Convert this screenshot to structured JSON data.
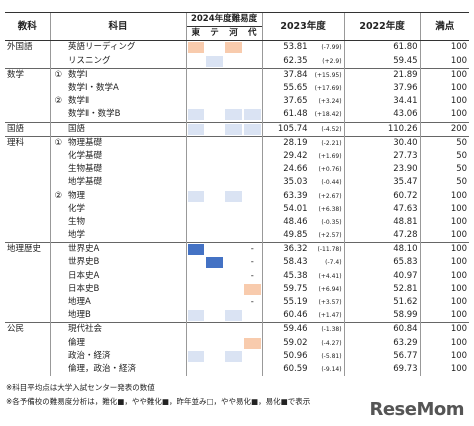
{
  "header": {
    "group": "教科",
    "subject": "科目",
    "difficulty": "2024年度難易度",
    "schools": [
      "東",
      "テ",
      "河",
      "代"
    ],
    "y2023": "2023年度",
    "y2022": "2022年度",
    "full": "満点"
  },
  "rows": [
    {
      "group": "外国語",
      "subject": "英語リーディング",
      "difficulty": [
        "#f8cbad",
        null,
        "#f8cbad",
        null
      ],
      "score": "53.81",
      "change": "(-7.99)",
      "prev": "61.80",
      "full": "100"
    },
    {
      "subject": "リスニング",
      "difficulty": [
        null,
        "#dae3f3",
        null,
        null
      ],
      "score": "62.35",
      "change": "(+2.9)",
      "prev": "59.45",
      "full": "100"
    },
    {
      "group": "数学",
      "marker": "①",
      "subject": "数学Ⅰ",
      "difficulty": [
        null,
        null,
        null,
        null
      ],
      "score": "37.84",
      "change": "(+15.95)",
      "prev": "21.89",
      "full": "100"
    },
    {
      "subject": "数学Ⅰ・数学A",
      "difficulty": [
        null,
        null,
        null,
        null
      ],
      "score": "55.65",
      "change": "(+17.69)",
      "prev": "37.96",
      "full": "100"
    },
    {
      "marker": "②",
      "subject": "数学Ⅱ",
      "difficulty": [
        null,
        null,
        null,
        null
      ],
      "score": "37.65",
      "change": "(+3.24)",
      "prev": "34.41",
      "full": "100"
    },
    {
      "subject": "数学Ⅱ・数学B",
      "difficulty": [
        "#dae3f3",
        null,
        "#dae3f3",
        "#dae3f3"
      ],
      "score": "61.48",
      "change": "(+18.42)",
      "prev": "43.06",
      "full": "100"
    },
    {
      "group": "国語",
      "subject": "国語",
      "difficulty": [
        "#dae3f3",
        null,
        "#dae3f3",
        "#dae3f3"
      ],
      "score": "105.74",
      "change": "(-4.52)",
      "prev": "110.26",
      "full": "200"
    },
    {
      "group": "理科",
      "marker": "①",
      "subject": "物理基礎",
      "difficulty": [
        null,
        null,
        null,
        null
      ],
      "score": "28.19",
      "change": "(-2.21)",
      "prev": "30.40",
      "full": "50"
    },
    {
      "subject": "化学基礎",
      "difficulty": [
        null,
        null,
        null,
        null
      ],
      "score": "29.42",
      "change": "(+1.69)",
      "prev": "27.73",
      "full": "50"
    },
    {
      "subject": "生物基礎",
      "difficulty": [
        null,
        null,
        null,
        null
      ],
      "score": "24.66",
      "change": "(+0.76)",
      "prev": "23.90",
      "full": "50"
    },
    {
      "subject": "地学基礎",
      "difficulty": [
        null,
        null,
        null,
        null
      ],
      "score": "35.03",
      "change": "(-0.44)",
      "prev": "35.47",
      "full": "50"
    },
    {
      "marker": "②",
      "subject": "物理",
      "difficulty": [
        "#dae3f3",
        null,
        "#dae3f3",
        null
      ],
      "score": "63.39",
      "change": "(+2.67)",
      "prev": "60.72",
      "full": "100"
    },
    {
      "subject": "化学",
      "difficulty": [
        null,
        null,
        null,
        null
      ],
      "score": "54.01",
      "change": "(+6.38)",
      "prev": "47.63",
      "full": "100"
    },
    {
      "subject": "生物",
      "difficulty": [
        null,
        null,
        null,
        null
      ],
      "score": "48.46",
      "change": "(-0.35)",
      "prev": "48.81",
      "full": "100"
    },
    {
      "subject": "地学",
      "difficulty": [
        null,
        null,
        null,
        null
      ],
      "score": "49.85",
      "change": "(+2.57)",
      "prev": "47.28",
      "full": "100"
    },
    {
      "group": "地理歴史",
      "subject": "世界史A",
      "difficulty": [
        "#4472c4",
        null,
        null,
        "-"
      ],
      "score": "36.32",
      "change": "(-11.78)",
      "prev": "48.10",
      "full": "100"
    },
    {
      "subject": "世界史B",
      "difficulty": [
        null,
        "#4472c4",
        null,
        "-"
      ],
      "score": "58.43",
      "change": "(-7.4)",
      "prev": "65.83",
      "full": "100"
    },
    {
      "subject": "日本史A",
      "difficulty": [
        null,
        null,
        null,
        "-"
      ],
      "score": "45.38",
      "change": "(+4.41)",
      "prev": "40.97",
      "full": "100"
    },
    {
      "subject": "日本史B",
      "difficulty": [
        null,
        null,
        null,
        "#f8cbad"
      ],
      "score": "59.75",
      "change": "(+6.94)",
      "prev": "52.81",
      "full": "100"
    },
    {
      "subject": "地理A",
      "difficulty": [
        null,
        null,
        null,
        "-"
      ],
      "score": "55.19",
      "change": "(+3.57)",
      "prev": "51.62",
      "full": "100"
    },
    {
      "subject": "地理B",
      "difficulty": [
        "#dae3f3",
        null,
        "#dae3f3",
        null
      ],
      "score": "60.46",
      "change": "(+1.47)",
      "prev": "58.99",
      "full": "100"
    },
    {
      "group": "公民",
      "subject": "現代社会",
      "difficulty": [
        null,
        null,
        null,
        null
      ],
      "score": "59.46",
      "change": "(-1.38)",
      "prev": "60.84",
      "full": "100"
    },
    {
      "subject": "倫理",
      "difficulty": [
        null,
        null,
        null,
        "#f8cbad"
      ],
      "score": "59.02",
      "change": "(-4.27)",
      "prev": "63.29",
      "full": "100"
    },
    {
      "subject": "政治・経済",
      "difficulty": [
        "#dae3f3",
        null,
        "#dae3f3",
        null
      ],
      "score": "50.96",
      "change": "(-5.81)",
      "prev": "56.77",
      "full": "100"
    },
    {
      "subject": "倫理，政治・経済",
      "difficulty": [
        null,
        null,
        null,
        null
      ],
      "score": "60.59",
      "change": "(-9.14)",
      "prev": "69.73",
      "full": "100"
    }
  ],
  "notes": [
    "※科目平均点は大学入試センター発表の数値",
    "※各予備校の難易度分析は，難化■，やや難化■，昨年並み□，やや易化■，易化■で表示"
  ],
  "logo": "ReseMom"
}
